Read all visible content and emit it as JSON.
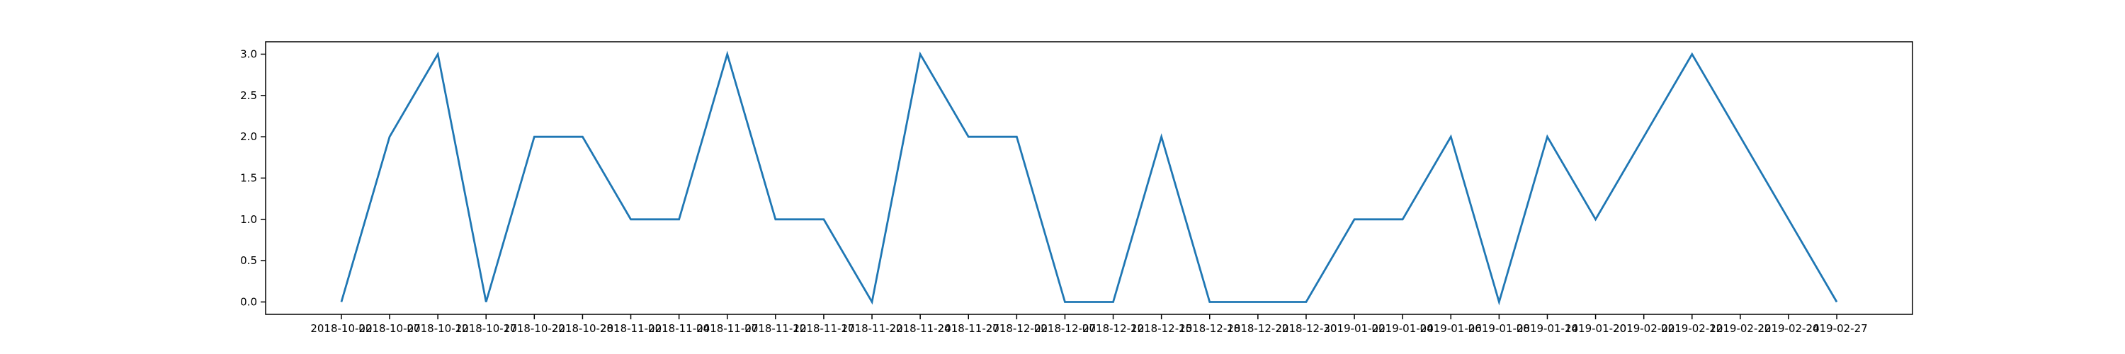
{
  "chart_data": {
    "type": "line",
    "categories": [
      "2018-10-02",
      "2018-10-07",
      "2018-10-12",
      "2018-10-17",
      "2018-10-22",
      "2018-10-28",
      "2018-11-02",
      "2018-11-04",
      "2018-11-07",
      "2018-11-12",
      "2018-11-17",
      "2018-11-22",
      "2018-11-24",
      "2018-11-27",
      "2018-12-02",
      "2018-12-07",
      "2018-12-12",
      "2018-12-15",
      "2018-12-18",
      "2018-12-22",
      "2018-12-30",
      "2019-01-02",
      "2019-01-04",
      "2019-01-06",
      "2019-01-08",
      "2019-01-14",
      "2019-01-20",
      "2019-02-02",
      "2019-02-12",
      "2019-02-22",
      "2019-02-24",
      "2019-02-27"
    ],
    "values": [
      0,
      2,
      3,
      0,
      2,
      2,
      1,
      1,
      3,
      1,
      1,
      0,
      3,
      2,
      2,
      0,
      0,
      2,
      0,
      0,
      0,
      1,
      1,
      2,
      0,
      2,
      1,
      2,
      3,
      2,
      1,
      0
    ],
    "color": "#1f77b4",
    "ylim": [
      -0.15,
      3.15
    ],
    "yticks": [
      {
        "value": 0,
        "label": "0.0"
      },
      {
        "value": 0.5,
        "label": "0.5"
      },
      {
        "value": 1,
        "label": "1.0"
      },
      {
        "value": 1.5,
        "label": "1.5"
      },
      {
        "value": 2,
        "label": "2.0"
      },
      {
        "value": 2.5,
        "label": "2.5"
      },
      {
        "value": 3,
        "label": "3.0"
      }
    ],
    "grid": false
  }
}
